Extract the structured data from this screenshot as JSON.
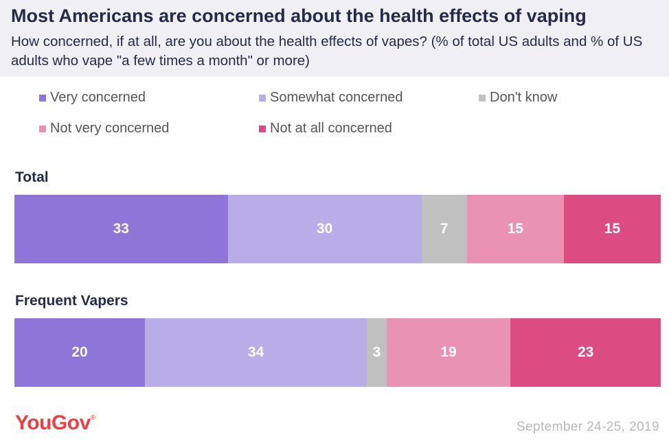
{
  "title": "Most Americans are concerned about the health effects of vaping",
  "subtitle": "How concerned, if at all, are you about the health effects of vapes? (% of total US adults and % of US adults who vape \"a few times a month\" or more)",
  "colors": {
    "very_concerned": "#8e76d8",
    "somewhat_concerned": "#b9ade8",
    "dont_know": "#c0c0c0",
    "not_very_concerned": "#ea92b2",
    "not_at_all_concerned": "#dc4b81",
    "header_background": "#efeff4",
    "brand_red": "#ef3e42"
  },
  "chart_data": {
    "type": "bar",
    "orientation": "horizontal-stacked-100",
    "legend_position": "top",
    "grid": false,
    "legend": [
      "Very concerned",
      "Somewhat concerned",
      "Don't know",
      "Not very concerned",
      "Not at all concerned"
    ],
    "categories": [
      "Total",
      "Frequent Vapers"
    ],
    "series": [
      {
        "name": "Very concerned",
        "values": [
          33,
          20
        ]
      },
      {
        "name": "Somewhat concerned",
        "values": [
          30,
          34
        ]
      },
      {
        "name": "Don't know",
        "values": [
          7,
          3
        ]
      },
      {
        "name": "Not very concerned",
        "values": [
          15,
          19
        ]
      },
      {
        "name": "Not at all concerned",
        "values": [
          15,
          23
        ]
      }
    ]
  },
  "footer": {
    "brand": "YouGov",
    "brand_mark": "®",
    "date": "September 24-25, 2019"
  }
}
